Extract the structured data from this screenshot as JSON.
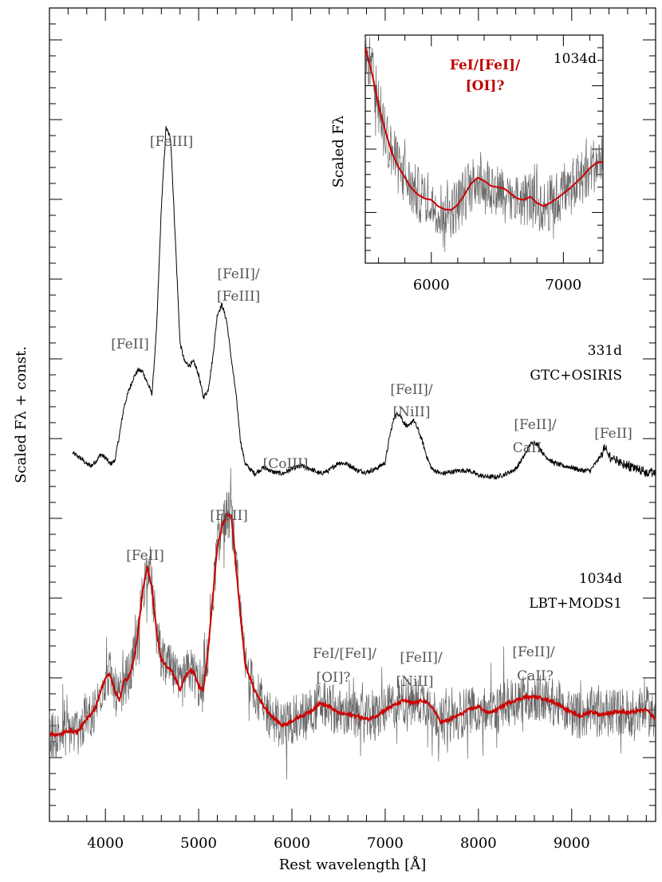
{
  "chart_data": [
    {
      "type": "line",
      "xlabel": "Rest wavelength [Å]",
      "ylabel": "Scaled Fλ + const.",
      "xlim": [
        3400,
        9900
      ],
      "xticks": [
        4000,
        5000,
        6000,
        7000,
        8000,
        9000
      ],
      "tick_labels": [
        "4000",
        "5000",
        "6000",
        "7000",
        "8000",
        "9000"
      ],
      "grid": false,
      "series": [
        {
          "name": "331d GTC+OSIRIS",
          "color": "#000000",
          "x": [
            3650,
            3700,
            3750,
            3800,
            3850,
            3900,
            3950,
            4000,
            4050,
            4100,
            4150,
            4200,
            4250,
            4300,
            4350,
            4400,
            4450,
            4500,
            4550,
            4600,
            4650,
            4700,
            4750,
            4800,
            4850,
            4900,
            4950,
            5000,
            5050,
            5100,
            5150,
            5200,
            5250,
            5300,
            5350,
            5400,
            5450,
            5500,
            5600,
            5700,
            5800,
            5900,
            6000,
            6100,
            6200,
            6300,
            6400,
            6500,
            6600,
            6700,
            6800,
            6900,
            7000,
            7050,
            7100,
            7150,
            7200,
            7250,
            7300,
            7350,
            7400,
            7450,
            7500,
            7600,
            7700,
            7800,
            7900,
            8000,
            8100,
            8200,
            8300,
            8400,
            8500,
            8550,
            8600,
            8650,
            8700,
            8800,
            8900,
            9000,
            9100,
            9200,
            9300,
            9350,
            9400,
            9500,
            9600,
            9700,
            9800,
            9900
          ],
          "y": [
            0.41,
            0.39,
            0.37,
            0.34,
            0.33,
            0.36,
            0.4,
            0.38,
            0.34,
            0.36,
            0.52,
            0.7,
            0.8,
            0.88,
            0.93,
            0.92,
            0.85,
            0.78,
            1.2,
            1.95,
            2.45,
            2.38,
            1.75,
            1.1,
            0.98,
            0.96,
            0.98,
            0.9,
            0.76,
            0.8,
            1.0,
            1.28,
            1.34,
            1.24,
            1.0,
            0.78,
            0.48,
            0.34,
            0.28,
            0.32,
            0.29,
            0.28,
            0.31,
            0.33,
            0.31,
            0.28,
            0.3,
            0.35,
            0.34,
            0.3,
            0.29,
            0.31,
            0.35,
            0.52,
            0.64,
            0.66,
            0.6,
            0.57,
            0.62,
            0.56,
            0.48,
            0.38,
            0.31,
            0.28,
            0.29,
            0.3,
            0.3,
            0.27,
            0.26,
            0.26,
            0.28,
            0.31,
            0.4,
            0.46,
            0.48,
            0.45,
            0.4,
            0.35,
            0.33,
            0.32,
            0.3,
            0.3,
            0.38,
            0.44,
            0.39,
            0.36,
            0.33,
            0.31,
            0.29,
            0.28
          ]
        },
        {
          "name": "1034d LBT+MODS1",
          "color": "#cc0000",
          "x": [
            3400,
            3500,
            3600,
            3700,
            3800,
            3900,
            3950,
            4000,
            4050,
            4100,
            4150,
            4200,
            4250,
            4300,
            4350,
            4400,
            4450,
            4500,
            4550,
            4600,
            4650,
            4700,
            4750,
            4800,
            4850,
            4900,
            4950,
            5000,
            5050,
            5100,
            5150,
            5200,
            5250,
            5300,
            5350,
            5400,
            5450,
            5500,
            5600,
            5700,
            5800,
            5900,
            6000,
            6100,
            6200,
            6300,
            6400,
            6500,
            6600,
            6700,
            6800,
            6900,
            7000,
            7100,
            7200,
            7300,
            7400,
            7500,
            7600,
            7700,
            7800,
            7900,
            8000,
            8100,
            8200,
            8300,
            8400,
            8500,
            8600,
            8700,
            8800,
            8900,
            9000,
            9100,
            9200,
            9300,
            9400,
            9500,
            9600,
            9700,
            9800,
            9900
          ],
          "y": [
            -1.35,
            -1.36,
            -1.33,
            -1.34,
            -1.26,
            -1.18,
            -1.08,
            -1.0,
            -0.98,
            -1.08,
            -1.14,
            -1.02,
            -1.0,
            -0.9,
            -0.72,
            -0.45,
            -0.3,
            -0.45,
            -0.72,
            -0.88,
            -0.92,
            -0.95,
            -1.0,
            -1.08,
            -1.0,
            -0.95,
            -0.97,
            -1.05,
            -1.08,
            -0.84,
            -0.5,
            -0.18,
            -0.05,
            0.02,
            0.02,
            -0.3,
            -0.62,
            -0.92,
            -1.08,
            -1.18,
            -1.25,
            -1.3,
            -1.27,
            -1.24,
            -1.21,
            -1.16,
            -1.18,
            -1.22,
            -1.23,
            -1.24,
            -1.26,
            -1.24,
            -1.2,
            -1.17,
            -1.14,
            -1.16,
            -1.14,
            -1.18,
            -1.28,
            -1.26,
            -1.23,
            -1.2,
            -1.18,
            -1.22,
            -1.2,
            -1.16,
            -1.14,
            -1.12,
            -1.12,
            -1.13,
            -1.15,
            -1.18,
            -1.22,
            -1.24,
            -1.21,
            -1.23,
            -1.22,
            -1.21,
            -1.22,
            -1.21,
            -1.2,
            -1.26
          ]
        },
        {
          "name": "1034d raw",
          "color": "#666666",
          "noise": 0.07,
          "note_series": "noisy raw spectrum underlying the smoothed red curve"
        }
      ],
      "annotations": [
        {
          "text": "[FeIII]",
          "x": 4700,
          "y_anchor": "peak"
        },
        {
          "text": "[FeII]",
          "x": 4300,
          "y_anchor": "upper-spectrum"
        },
        {
          "text": "[FeII]/",
          "x": 5250,
          "y_anchor": "upper-spectrum"
        },
        {
          "text": "[FeIII]",
          "x": 5250,
          "y_anchor": "upper-spectrum"
        },
        {
          "text": "[CoIII]",
          "x": 5850,
          "y_anchor": "upper-spectrum"
        },
        {
          "text": "[FeII]/",
          "x": 7200,
          "y_anchor": "upper-spectrum"
        },
        {
          "text": "[NiII]",
          "x": 7200,
          "y_anchor": "upper-spectrum"
        },
        {
          "text": "[FeII]/",
          "x": 8600,
          "y_anchor": "upper-spectrum"
        },
        {
          "text": "CaII",
          "x": 8600,
          "y_anchor": "upper-spectrum"
        },
        {
          "text": "[FeII]",
          "x": 9400,
          "y_anchor": "upper-spectrum"
        },
        {
          "text": "[FeII]",
          "x": 4450,
          "y_anchor": "lower-spectrum"
        },
        {
          "text": "[FeII]",
          "x": 5300,
          "y_anchor": "lower-spectrum"
        },
        {
          "text": "FeI/[FeI]/",
          "x": 6300,
          "y_anchor": "lower-spectrum"
        },
        {
          "text": "[OI]?",
          "x": 6300,
          "y_anchor": "lower-spectrum"
        },
        {
          "text": "[FeII]/",
          "x": 7300,
          "y_anchor": "lower-spectrum"
        },
        {
          "text": "[NiII]",
          "x": 7300,
          "y_anchor": "lower-spectrum"
        },
        {
          "text": "[FeII]/",
          "x": 8600,
          "y_anchor": "lower-spectrum"
        },
        {
          "text": "CaII?",
          "x": 8600,
          "y_anchor": "lower-spectrum"
        }
      ],
      "epoch_labels": {
        "upper_1": "331d",
        "upper_2": "GTC+OSIRIS",
        "lower_1": "1034d",
        "lower_2": "LBT+MODS1"
      }
    },
    {
      "type": "line",
      "ylabel": "Scaled Fλ",
      "xlim": [
        5500,
        7300
      ],
      "xticks": [
        6000,
        7000
      ],
      "tick_labels": [
        "6000",
        "7000"
      ],
      "grid": false,
      "epoch": "1034d",
      "annotation_line1": "FeI/[FeI]/",
      "annotation_line2": "[OI]?",
      "series": [
        {
          "name": "smoothed",
          "color": "#cc0000",
          "x": [
            5500,
            5550,
            5600,
            5650,
            5700,
            5750,
            5800,
            5850,
            5900,
            5950,
            6000,
            6050,
            6100,
            6150,
            6200,
            6250,
            6300,
            6350,
            6400,
            6450,
            6500,
            6550,
            6600,
            6650,
            6700,
            6750,
            6800,
            6850,
            6900,
            6950,
            7000,
            7050,
            7100,
            7150,
            7200,
            7250,
            7300
          ],
          "y": [
            2.6,
            2.2,
            1.7,
            1.3,
            0.95,
            0.72,
            0.55,
            0.38,
            0.28,
            0.22,
            0.2,
            0.1,
            0.05,
            0.04,
            0.12,
            0.28,
            0.45,
            0.55,
            0.5,
            0.42,
            0.4,
            0.38,
            0.3,
            0.22,
            0.2,
            0.25,
            0.15,
            0.1,
            0.15,
            0.22,
            0.3,
            0.38,
            0.48,
            0.58,
            0.7,
            0.78,
            0.8
          ]
        },
        {
          "name": "raw",
          "color": "#666666",
          "noise": 0.28
        }
      ],
      "ylim": [
        -0.8,
        2.8
      ]
    }
  ]
}
